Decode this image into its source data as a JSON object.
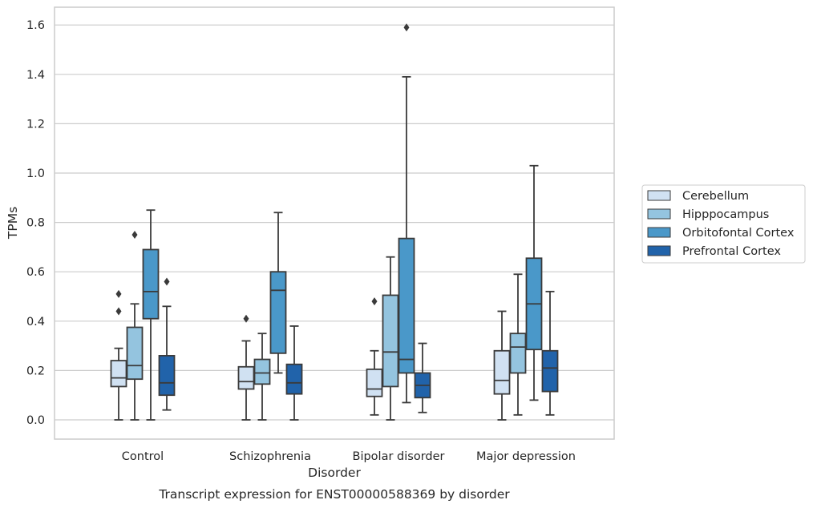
{
  "chart_data": {
    "type": "box",
    "title": "",
    "caption": "Transcript expression for ENST00000588369 by disorder",
    "xlabel": "Disorder",
    "ylabel": "TPMs",
    "ylim": [
      -0.08,
      1.67
    ],
    "yticks": [
      "0.0",
      "0.2",
      "0.4",
      "0.6",
      "0.8",
      "1.0",
      "1.2",
      "1.4",
      "1.6"
    ],
    "categories": [
      "Control",
      "Schizophrenia",
      "Bipolar disorder",
      "Major depression"
    ],
    "grid": "horizontal",
    "legend_position": "right",
    "series": [
      {
        "name": "Cerebellum",
        "color": "#d0e1f2",
        "boxes": [
          {
            "min": 0.0,
            "q1": 0.135,
            "median": 0.17,
            "q3": 0.24,
            "max": 0.29,
            "outliers": [
              0.44,
              0.51
            ]
          },
          {
            "min": 0.0,
            "q1": 0.125,
            "median": 0.155,
            "q3": 0.215,
            "max": 0.32,
            "outliers": [
              0.41
            ]
          },
          {
            "min": 0.02,
            "q1": 0.095,
            "median": 0.125,
            "q3": 0.205,
            "max": 0.28,
            "outliers": [
              0.48
            ]
          },
          {
            "min": 0.0,
            "q1": 0.105,
            "median": 0.16,
            "q3": 0.28,
            "max": 0.44,
            "outliers": []
          }
        ]
      },
      {
        "name": "Hipppocampus",
        "color": "#94c4df",
        "boxes": [
          {
            "min": 0.0,
            "q1": 0.165,
            "median": 0.22,
            "q3": 0.375,
            "max": 0.47,
            "outliers": [
              0.75
            ]
          },
          {
            "min": 0.0,
            "q1": 0.145,
            "median": 0.19,
            "q3": 0.245,
            "max": 0.35,
            "outliers": []
          },
          {
            "min": 0.0,
            "q1": 0.135,
            "median": 0.275,
            "q3": 0.505,
            "max": 0.66,
            "outliers": []
          },
          {
            "min": 0.02,
            "q1": 0.19,
            "median": 0.295,
            "q3": 0.35,
            "max": 0.59,
            "outliers": []
          }
        ]
      },
      {
        "name": "Orbitofontal Cortex",
        "color": "#4a98c9",
        "boxes": [
          {
            "min": 0.0,
            "q1": 0.41,
            "median": 0.52,
            "q3": 0.69,
            "max": 0.85,
            "outliers": []
          },
          {
            "min": 0.19,
            "q1": 0.27,
            "median": 0.525,
            "q3": 0.6,
            "max": 0.84,
            "outliers": []
          },
          {
            "min": 0.07,
            "q1": 0.19,
            "median": 0.245,
            "q3": 0.735,
            "max": 1.39,
            "outliers": [
              1.59
            ]
          },
          {
            "min": 0.08,
            "q1": 0.285,
            "median": 0.47,
            "q3": 0.655,
            "max": 1.03,
            "outliers": []
          }
        ]
      },
      {
        "name": "Prefrontal Cortex",
        "color": "#2163aa",
        "boxes": [
          {
            "min": 0.04,
            "q1": 0.1,
            "median": 0.15,
            "q3": 0.26,
            "max": 0.46,
            "outliers": [
              0.56
            ]
          },
          {
            "min": 0.0,
            "q1": 0.105,
            "median": 0.15,
            "q3": 0.225,
            "max": 0.38,
            "outliers": []
          },
          {
            "min": 0.03,
            "q1": 0.09,
            "median": 0.14,
            "q3": 0.19,
            "max": 0.31,
            "outliers": []
          },
          {
            "min": 0.02,
            "q1": 0.115,
            "median": 0.21,
            "q3": 0.28,
            "max": 0.52,
            "outliers": []
          }
        ]
      }
    ]
  }
}
